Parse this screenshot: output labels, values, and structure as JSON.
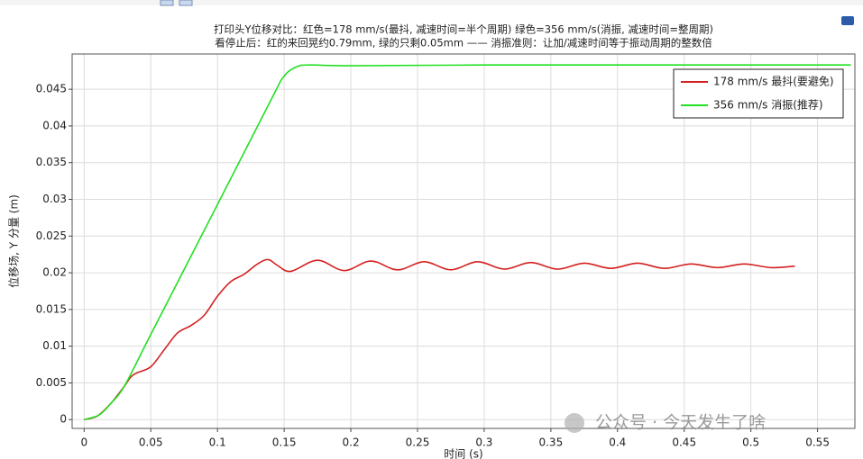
{
  "chart_data": {
    "type": "line",
    "title": "打印头Y位移对比：红色=178 mm/s(最抖, 减速时间=半个周期) 绿色=356 mm/s(消振, 减速时间=整周期)",
    "subtitle": "看停止后：红的来回晃约0.79mm, 绿的只剩0.05mm —— 消振准则：让加/减速时间等于振动周期的整数倍",
    "xlabel": "时间 (s)",
    "ylabel": "位移场, Y 分量 (m)",
    "annotation": "公众号 · 今天发生了啥",
    "xlim": [
      -0.009,
      0.578
    ],
    "ylim": [
      -0.0012,
      0.0498
    ],
    "xticks": [
      0,
      0.05,
      0.1,
      0.15,
      0.2,
      0.25,
      0.3,
      0.35,
      0.4,
      0.45,
      0.5,
      0.55
    ],
    "yticks": [
      0,
      0.005,
      0.01,
      0.015,
      0.02,
      0.025,
      0.03,
      0.035,
      0.04,
      0.045
    ],
    "grid": true,
    "legend": "upper right",
    "series": [
      {
        "name": "178 mm/s 最抖(要避免)",
        "color": "#d42020",
        "x": [
          0,
          0.01,
          0.02,
          0.03,
          0.035,
          0.04,
          0.05,
          0.06,
          0.07,
          0.08,
          0.09,
          0.1,
          0.11,
          0.12,
          0.13,
          0.138,
          0.145,
          0.155,
          0.175,
          0.195,
          0.215,
          0.235,
          0.255,
          0.275,
          0.295,
          0.315,
          0.335,
          0.355,
          0.375,
          0.395,
          0.415,
          0.435,
          0.455,
          0.475,
          0.495,
          0.515,
          0.533
        ],
        "values": [
          0,
          0.0005,
          0.0022,
          0.0045,
          0.0058,
          0.0064,
          0.0072,
          0.0095,
          0.0118,
          0.0128,
          0.0142,
          0.0168,
          0.0188,
          0.0198,
          0.0212,
          0.0218,
          0.021,
          0.0202,
          0.0217,
          0.0203,
          0.0216,
          0.0204,
          0.0215,
          0.0204,
          0.0215,
          0.0205,
          0.0214,
          0.0205,
          0.0213,
          0.0206,
          0.0213,
          0.0206,
          0.0212,
          0.0207,
          0.0212,
          0.0207,
          0.0209
        ]
      },
      {
        "name": "356 mm/s 消振(推荐)",
        "color": "#22e022",
        "x": [
          0,
          0.01,
          0.015,
          0.02,
          0.03,
          0.05,
          0.1,
          0.14,
          0.15,
          0.16,
          0.17,
          0.2,
          0.3,
          0.4,
          0.5,
          0.575
        ],
        "values": [
          0,
          0.0005,
          0.0012,
          0.0022,
          0.0045,
          0.0116,
          0.0293,
          0.0435,
          0.0468,
          0.0481,
          0.0483,
          0.0482,
          0.0483,
          0.0483,
          0.0483,
          0.0483
        ]
      }
    ]
  }
}
